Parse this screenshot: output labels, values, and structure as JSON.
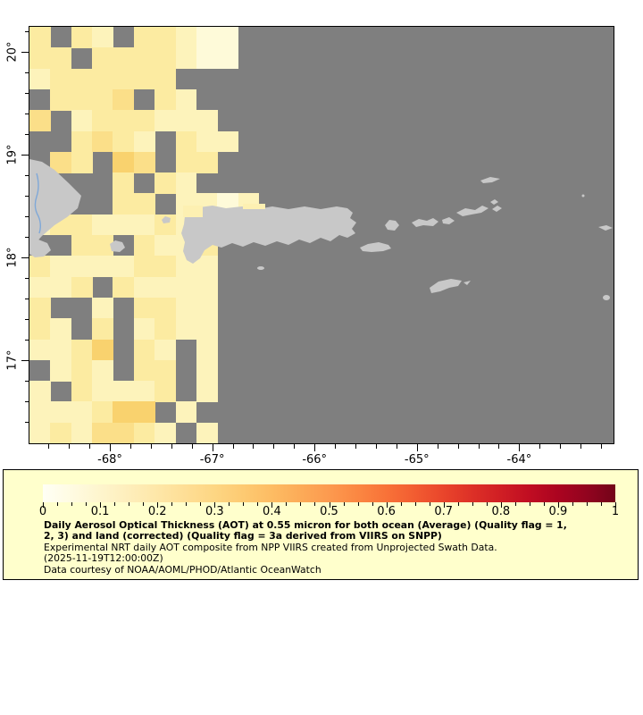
{
  "chart_data": {
    "type": "heatmap",
    "description": "Gridded daily aerosol optical thickness composite over the Puerto Rico / Virgin Islands region; pale-yellow cells are AOT values roughly 0.02-0.25, dark gray is no data, light gray is land.",
    "title": "Daily Aerosol Optical Thickness (AOT) at 0.55 micron for both ocean (Average) (Quality flag = 1, 2, 3) and land (corrected) (Quality flag = 3a derived from VIIRS on SNPP)",
    "subtitle": "Experimental NRT daily AOT composite from NPP VIIRS created from Unprojected Swath Data.",
    "timestamp": "(2025-11-19T12:00:00Z)",
    "credit": "Data courtesy of NOAA/AOML/PHOD/Atlantic OceanWatch",
    "lon_range": [
      -68.79,
      -63.08
    ],
    "lat_range": [
      16.19,
      20.24
    ],
    "no_data_color": "#7f7f7f",
    "land_color": "#c8c8c8",
    "river_color": "#7fa8d8",
    "x_axis": {
      "major": [
        {
          "label": "-68°",
          "lon": -68
        },
        {
          "label": "-67°",
          "lon": -67
        },
        {
          "label": "-66°",
          "lon": -66
        },
        {
          "label": "-65°",
          "lon": -65
        },
        {
          "label": "-64°",
          "lon": -64
        }
      ],
      "minor_step_deg": 0.2
    },
    "y_axis": {
      "major": [
        {
          "label": "20°",
          "lat": 20
        },
        {
          "label": "19°",
          "lat": 19
        },
        {
          "label": "18°",
          "lat": 18
        },
        {
          "label": "17°",
          "lat": 17
        }
      ],
      "minor_step_deg": 0.2
    },
    "grid": {
      "cols": 28,
      "rows": 20,
      "legend": "characters a-e are AOT cells (approx values below); '.' = no data",
      "values": {
        "a": 0.03,
        "b": 0.07,
        "c": 0.11,
        "d": 0.16,
        "e": 0.22
      },
      "palette": {
        "a": "#fefad9",
        "b": "#fdf3bb",
        "c": "#fceba1",
        "d": "#fbdf89",
        "e": "#f9d26e"
      },
      "rows_encoded": [
        "c.cb.ccbaa..................",
        "cc.ccccbaa..................",
        "bcccccc.....................",
        ".cccd.cb....................",
        "d.bcccbbb...................",
        "..cdcb.cbb..................",
        ".dc.ed.cc...................",
        "....c.cb....................",
        "....cc.bbab.................",
        "bccbbbcbb...................",
        "..cc.cbbc...................",
        "cbbbbccbb...................",
        "bbc.cbbbb...................",
        "c..b.ccbb...................",
        "cb.c.bcbb...................",
        "bbce.cb.b...................",
        ".bcb.cc.b...................",
        "b.cbbbc.b...................",
        "bbbcee.b....................",
        "bcbddcb.b..................."
      ]
    },
    "colorbar": {
      "min": 0,
      "max": 1,
      "tick_labels": [
        "0",
        "0.1",
        "0.2",
        "0.3",
        "0.4",
        "0.5",
        "0.6",
        "0.7",
        "0.8",
        "0.9",
        "1"
      ],
      "minor_tick_step": 0.025,
      "gradient": [
        {
          "at": 0.0,
          "color": "#fffff5"
        },
        {
          "at": 0.05,
          "color": "#fffbe2"
        },
        {
          "at": 0.1,
          "color": "#fef5cd"
        },
        {
          "at": 0.15,
          "color": "#feeebb"
        },
        {
          "at": 0.2,
          "color": "#fee7a8"
        },
        {
          "at": 0.25,
          "color": "#fede95"
        },
        {
          "at": 0.3,
          "color": "#fdd683"
        },
        {
          "at": 0.35,
          "color": "#fdca72"
        },
        {
          "at": 0.4,
          "color": "#fdbc63"
        },
        {
          "at": 0.45,
          "color": "#fcab58"
        },
        {
          "at": 0.5,
          "color": "#fc9a4f"
        },
        {
          "at": 0.55,
          "color": "#fb8742"
        },
        {
          "at": 0.6,
          "color": "#f87238"
        },
        {
          "at": 0.65,
          "color": "#f25c31"
        },
        {
          "at": 0.7,
          "color": "#e9452b"
        },
        {
          "at": 0.75,
          "color": "#dd3027"
        },
        {
          "at": 0.8,
          "color": "#d01e24"
        },
        {
          "at": 0.85,
          "color": "#c00d22"
        },
        {
          "at": 0.9,
          "color": "#ab0420"
        },
        {
          "at": 0.95,
          "color": "#92041f"
        },
        {
          "at": 1.0,
          "color": "#730419"
        }
      ]
    },
    "caption": {
      "lines": [
        {
          "text": "Daily Aerosol Optical Thickness (AOT) at 0.55 micron for both ocean (Average) (Quality flag = 1,",
          "bold": true
        },
        {
          "text": "2, 3) and land (corrected) (Quality flag = 3a derived from VIIRS on SNPP)",
          "bold": true
        },
        {
          "text": "Experimental NRT daily AOT composite from NPP VIIRS created from Unprojected Swath Data.",
          "bold": false
        },
        {
          "text": "(2025-11-19T12:00:00Z)",
          "bold": false
        },
        {
          "text": "Data courtesy of NOAA/AOML/PHOD/Atlantic OceanWatch",
          "bold": false
        }
      ]
    }
  }
}
